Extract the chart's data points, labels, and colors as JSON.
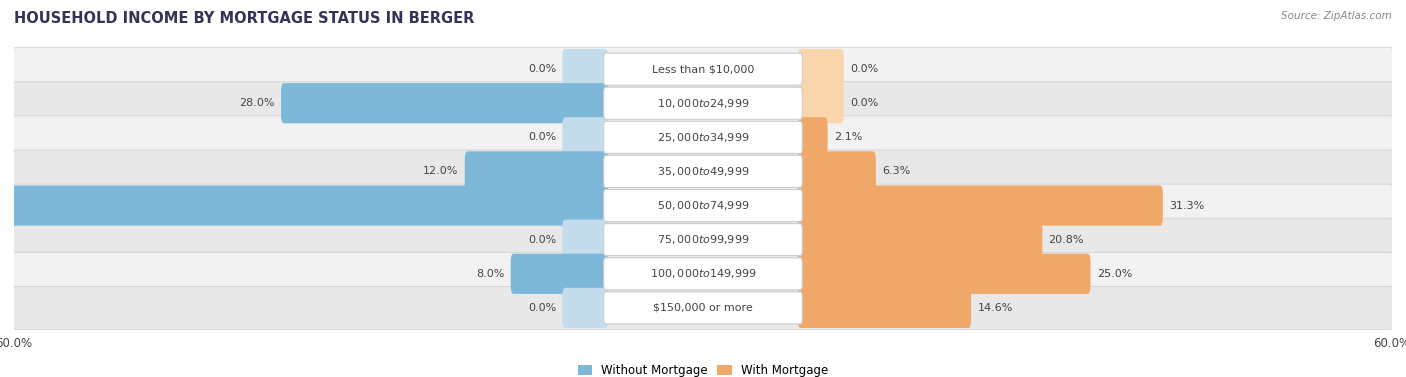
{
  "title": "HOUSEHOLD INCOME BY MORTGAGE STATUS IN BERGER",
  "source": "Source: ZipAtlas.com",
  "categories": [
    "Less than $10,000",
    "$10,000 to $24,999",
    "$25,000 to $34,999",
    "$35,000 to $49,999",
    "$50,000 to $74,999",
    "$75,000 to $99,999",
    "$100,000 to $149,999",
    "$150,000 or more"
  ],
  "without_mortgage": [
    0.0,
    28.0,
    0.0,
    12.0,
    52.0,
    0.0,
    8.0,
    0.0
  ],
  "with_mortgage": [
    0.0,
    0.0,
    2.1,
    6.3,
    31.3,
    20.8,
    25.0,
    14.6
  ],
  "color_without": "#7eb8d9",
  "color_with": "#f0a868",
  "color_without_light": "#c5dced",
  "color_with_light": "#f8d5aa",
  "xlim": 60.0,
  "bg_color": "#ffffff",
  "row_bg_odd": "#f2f2f2",
  "row_bg_even": "#e8e8e8",
  "label_box_color": "#ffffff",
  "label_text_color": "#444444",
  "value_text_color": "#444444",
  "legend_without": "Without Mortgage",
  "legend_with": "With Mortgage"
}
